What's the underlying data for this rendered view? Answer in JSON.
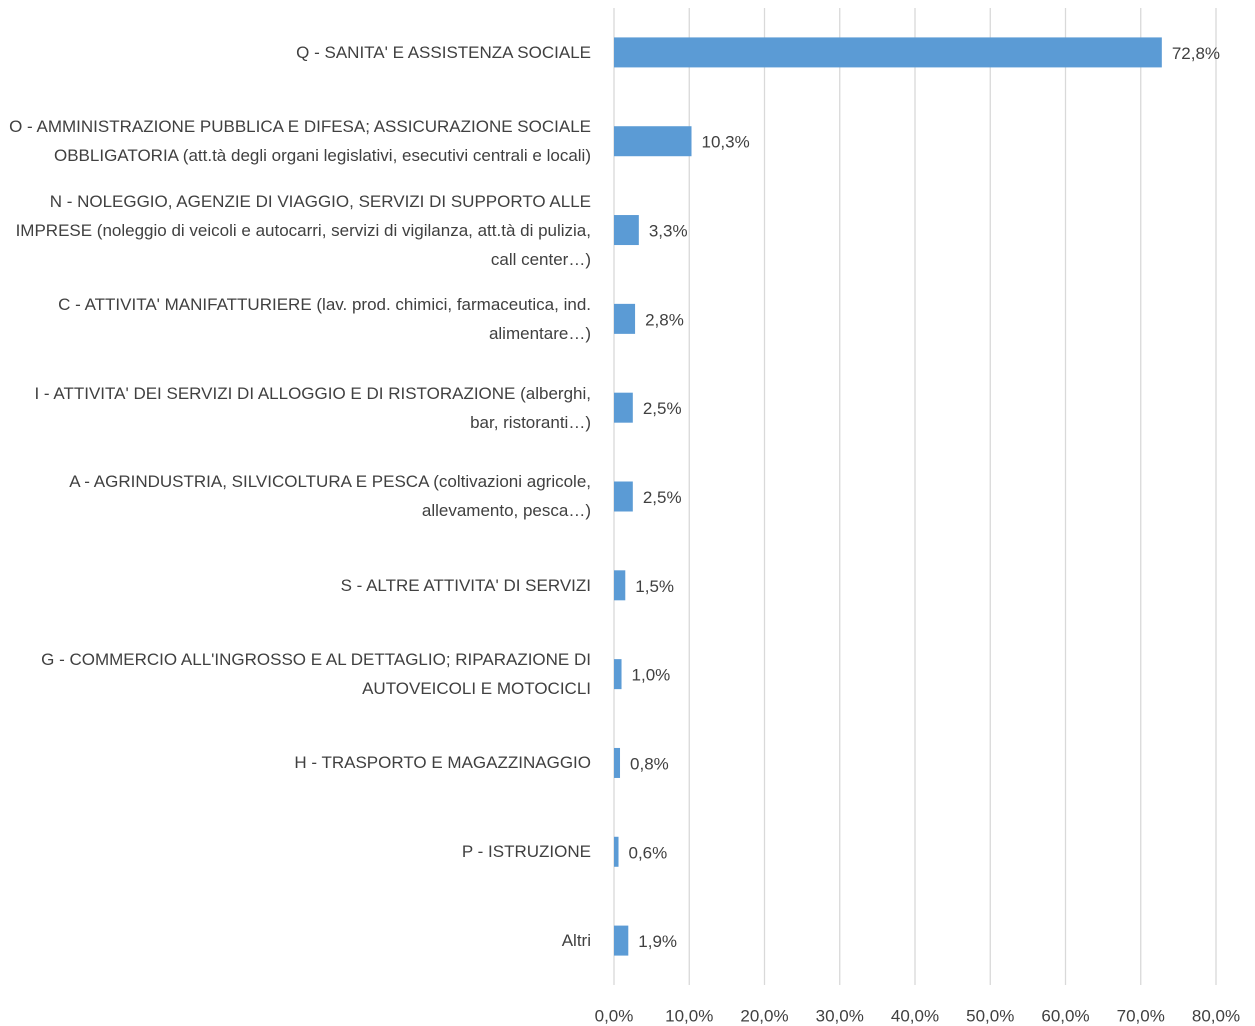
{
  "chart_data": {
    "type": "hbar",
    "categories": [
      "Q - SANITA' E ASSISTENZA SOCIALE",
      "O - AMMINISTRAZIONE PUBBLICA E DIFESA; ASSICURAZIONE SOCIALE OBBLIGATORIA (att.tà degli organi legislativi, esecutivi centrali e locali)",
      "N - NOLEGGIO, AGENZIE DI VIAGGIO, SERVIZI DI SUPPORTO ALLE IMPRESE (noleggio di veicoli e autocarri, servizi di vigilanza, att.tà di pulizia, call center…)",
      "C - ATTIVITA' MANIFATTURIERE (lav. prod. chimici, farmaceutica, ind. alimentare…)",
      "I - ATTIVITA' DEI SERVIZI DI ALLOGGIO E DI RISTORAZIONE (alberghi, bar, ristoranti…)",
      "A - AGRINDUSTRIA, SILVICOLTURA E PESCA (coltivazioni agricole, allevamento, pesca…)",
      "S - ALTRE ATTIVITA' DI SERVIZI",
      "G - COMMERCIO ALL'INGROSSO E AL DETTAGLIO; RIPARAZIONE DI AUTOVEICOLI E MOTOCICLI",
      "H - TRASPORTO E MAGAZZINAGGIO",
      "P - ISTRUZIONE",
      "Altri"
    ],
    "values": [
      72.8,
      10.3,
      3.3,
      2.8,
      2.5,
      2.5,
      1.5,
      1.0,
      0.8,
      0.6,
      1.9
    ],
    "value_labels": [
      "72,8%",
      "10,3%",
      "3,3%",
      "2,8%",
      "2,5%",
      "2,5%",
      "1,5%",
      "1,0%",
      "0,8%",
      "0,6%",
      "1,9%"
    ],
    "color": "#5b9bd5",
    "xlim": [
      0,
      80
    ],
    "xticks": [
      {
        "value": 0,
        "label": "0,0%"
      },
      {
        "value": 10,
        "label": "10,0%"
      },
      {
        "value": 20,
        "label": "20,0%"
      },
      {
        "value": 30,
        "label": "30,0%"
      },
      {
        "value": 40,
        "label": "40,0%"
      },
      {
        "value": 50,
        "label": "50,0%"
      },
      {
        "value": 60,
        "label": "60,0%"
      },
      {
        "value": 70,
        "label": "70,0%"
      },
      {
        "value": 80,
        "label": "80,0%"
      }
    ],
    "grid": true
  }
}
